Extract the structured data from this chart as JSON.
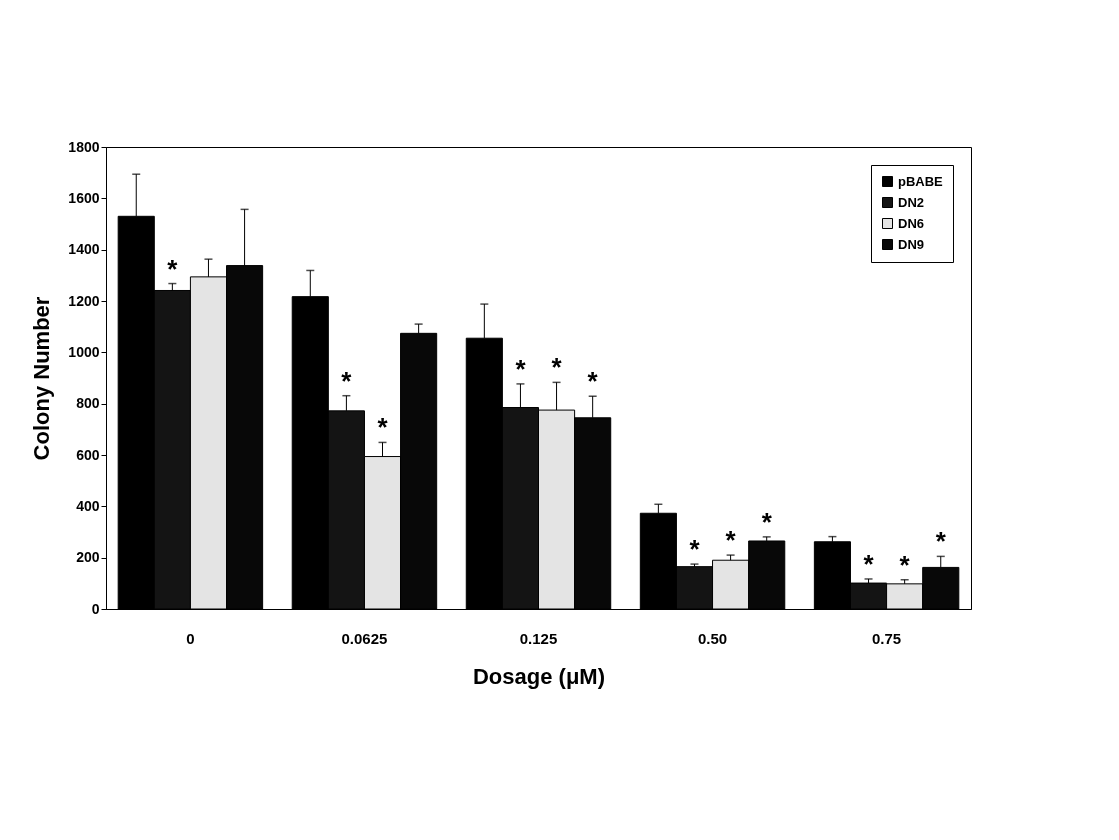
{
  "chart_data": {
    "type": "bar",
    "xlabel": "Dosage (μM)",
    "ylabel": "Colony Number",
    "categories": [
      "0",
      "0.0625",
      "0.125",
      "0.50",
      "0.75"
    ],
    "series": [
      {
        "name": "pBABE",
        "color": "#000000",
        "values": [
          1530,
          1217,
          1055,
          373,
          262
        ],
        "errors": [
          164,
          102,
          133,
          35,
          20
        ]
      },
      {
        "name": "DN2",
        "color": "#141414",
        "values": [
          1241,
          772,
          785,
          165,
          101
        ],
        "errors": [
          27,
          59,
          92,
          10,
          16
        ]
      },
      {
        "name": "DN6",
        "color": "#e4e4e4",
        "values": [
          1294,
          594,
          775,
          190,
          98
        ],
        "errors": [
          69,
          55,
          108,
          20,
          16
        ]
      },
      {
        "name": "DN9",
        "color": "#080808",
        "values": [
          1338,
          1074,
          745,
          265,
          162
        ],
        "errors": [
          219,
          36,
          84,
          16,
          43
        ]
      }
    ],
    "ylim": [
      0,
      1800
    ],
    "yticks": [
      0,
      200,
      400,
      600,
      800,
      1000,
      1200,
      1400,
      1600,
      1800
    ],
    "grid": false,
    "legend": "top right",
    "annotations": [
      {
        "text": "*",
        "x": "0",
        "y": 1241
      },
      {
        "text": "*",
        "x": "0.0625",
        "y": 772
      },
      {
        "text": "*",
        "x": "0.0625",
        "y": 594
      },
      {
        "text": "*",
        "x": "0.125",
        "y": 785
      },
      {
        "text": "*",
        "x": "0.125",
        "y": 775
      },
      {
        "text": "*",
        "x": "0.125",
        "y": 745
      },
      {
        "text": "*",
        "x": "0.50",
        "y": 165
      },
      {
        "text": "*",
        "x": "0.50",
        "y": 190
      },
      "*",
      {
        "text": "*",
        "x": "0.75",
        "y": 101
      },
      {
        "text": "*",
        "x": "0.75",
        "y": 98
      },
      "*"
    ]
  }
}
